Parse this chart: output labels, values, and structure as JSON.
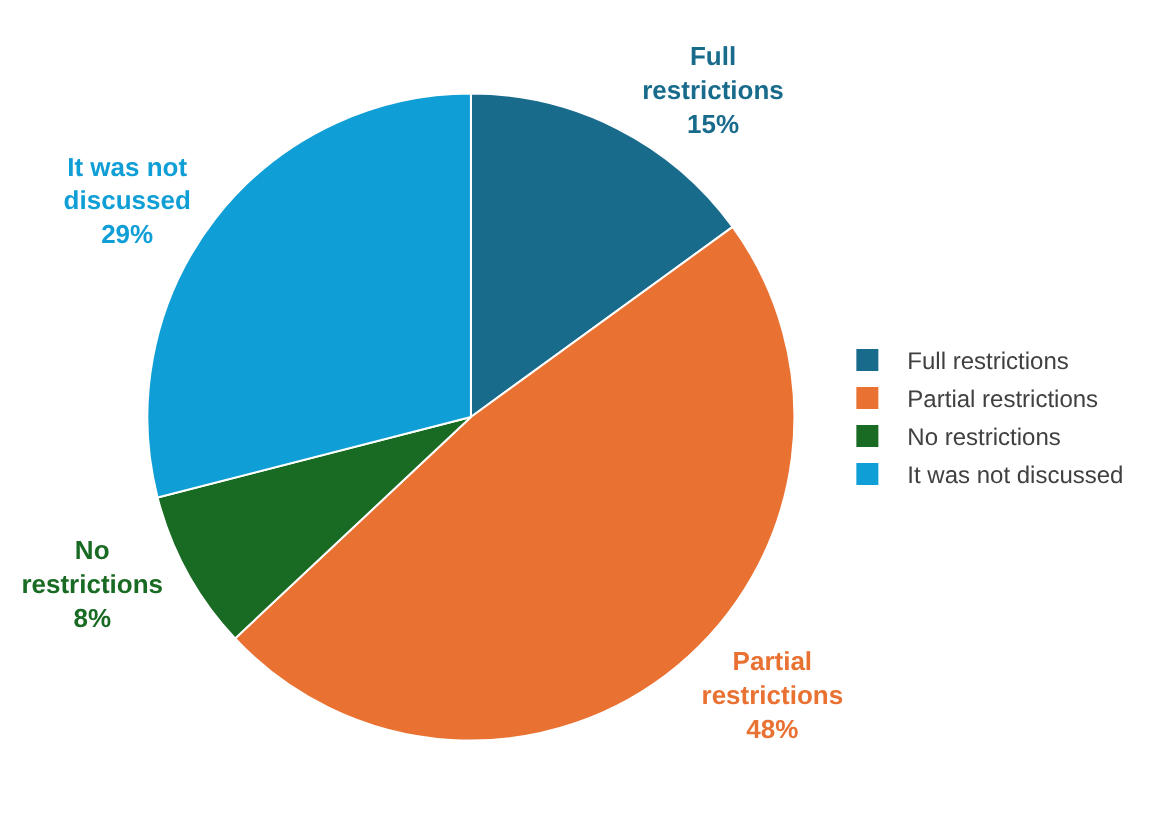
{
  "chart_data": {
    "type": "pie",
    "categories": [
      "Full restrictions",
      "Partial restrictions",
      "No restrictions",
      "It was not discussed"
    ],
    "values": [
      15,
      48,
      8,
      29
    ],
    "value_labels": [
      "15%",
      "48%",
      "8%",
      "29%"
    ],
    "colors": [
      "#196b8c",
      "#e97132",
      "#196b24",
      "#0f9ed5"
    ],
    "legend": "right"
  }
}
